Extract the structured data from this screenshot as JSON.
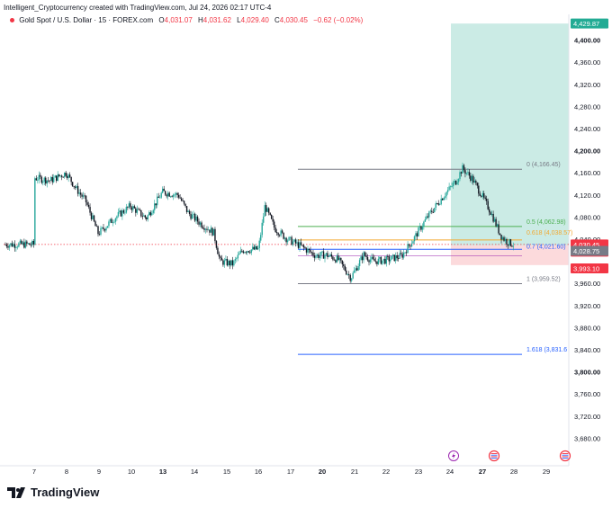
{
  "header": {
    "attribution": "Intelligent_Cryptocurrency created with TradingView.com, Jul 24, 2026 02:17 UTC-4"
  },
  "legend": {
    "symbol": "Gold Spot / U.S. Dollar · 15 · FOREX.com",
    "open_label": "O",
    "open": "4,031.07",
    "high_label": "H",
    "high": "4,031.62",
    "low_label": "L",
    "low": "4,029.40",
    "close_label": "C",
    "close": "4,030.45",
    "change": "−0.62 (−0.02%)"
  },
  "footer": {
    "brand": "TradingView"
  },
  "colors": {
    "up": "#26a69a",
    "down": "#f23645",
    "candle": "#131722",
    "target_zone": "#b9e4dc",
    "stop_zone": "#fbd3d6",
    "fib_0": "#787b86",
    "fib_05": "#4caf50",
    "fib_0618": "#f2a82f",
    "fib_07": "#2962ff",
    "fib_1": "#787b86",
    "fib_1618": "#2962ff",
    "target_tag": "#22ab94",
    "price_tag": "#f23645",
    "entry_tag": "#787b86"
  },
  "icons": [
    "lightning-event-icon",
    "us-flag-event-icon",
    "us-flag-event-icon"
  ],
  "chart_data": {
    "type": "candlestick",
    "title": "Gold Spot / U.S. Dollar · 15 · FOREX.com",
    "currency": "USD",
    "ylim": [
      3660,
      4450
    ],
    "y_ticks": [
      "4,400.00",
      "4,360.00",
      "4,320.00",
      "4,280.00",
      "4,240.00",
      "4,200.00",
      "4,160.00",
      "4,120.00",
      "4,080.00",
      "4,040.00",
      "3,960.00",
      "3,920.00",
      "3,880.00",
      "3,840.00",
      "3,800.00",
      "3,760.00",
      "3,720.00",
      "3,680.00"
    ],
    "y_tick_values": [
      4400,
      4360,
      4320,
      4280,
      4240,
      4200,
      4160,
      4120,
      4080,
      4040,
      3960,
      3920,
      3880,
      3840,
      3800,
      3760,
      3720,
      3680
    ],
    "x_ticks": [
      "7",
      "8",
      "9",
      "10",
      "13",
      "14",
      "15",
      "16",
      "17",
      "20",
      "21",
      "22",
      "23",
      "24",
      "27",
      "28",
      "29"
    ],
    "x_ticks_bold": [
      "13",
      "20",
      "27"
    ],
    "price_path": [
      [
        0,
        4151
      ],
      [
        0.5,
        4146
      ],
      [
        1,
        4160
      ],
      [
        1.3,
        4132
      ],
      [
        1.6,
        4110
      ],
      [
        2,
        4050
      ],
      [
        2.5,
        4078
      ],
      [
        3,
        4100
      ],
      [
        3.5,
        4078
      ],
      [
        4,
        4125
      ],
      [
        4.5,
        4120
      ],
      [
        4.8,
        4088
      ],
      [
        5.2,
        4068
      ],
      [
        5.6,
        4052
      ],
      [
        5.8,
        4000
      ],
      [
        6.2,
        3995
      ],
      [
        6.5,
        4020
      ],
      [
        7,
        4022
      ],
      [
        7.2,
        4100
      ],
      [
        7.5,
        4060
      ],
      [
        7.9,
        4040
      ],
      [
        8.3,
        4028
      ],
      [
        8.8,
        4010
      ],
      [
        9.1,
        4012
      ],
      [
        9.5,
        4003
      ],
      [
        9.9,
        3970
      ],
      [
        10.3,
        4012
      ],
      [
        10.6,
        4000
      ],
      [
        11,
        4002
      ],
      [
        11.5,
        4010
      ],
      [
        11.9,
        4043
      ],
      [
        12.3,
        4080
      ],
      [
        12.8,
        4118
      ],
      [
        13.2,
        4145
      ],
      [
        13.4,
        4168
      ],
      [
        13.7,
        4150
      ],
      [
        14,
        4120
      ],
      [
        14.3,
        4088
      ],
      [
        14.6,
        4047
      ],
      [
        14.8,
        4035
      ],
      [
        15,
        4030.45
      ]
    ],
    "fibonacci": [
      {
        "level": "0",
        "value": 4166.45,
        "label": "0 (4,166.45)"
      },
      {
        "level": "0.5",
        "value": 4062.98,
        "label": "0.5 (4,062.98)"
      },
      {
        "level": "0.618",
        "value": 4038.57,
        "label": "0.618 (4,038.57)"
      },
      {
        "level": "0.7",
        "value": 4021.6,
        "label": "0.7 (4,021.60)"
      },
      {
        "level": "1",
        "value": 3959.52,
        "label": "1 (3,959.52)"
      },
      {
        "level": "1.618",
        "value": 3831.6,
        "label": "1.618 (3,831.6"
      }
    ],
    "position_tool": {
      "target": "4,429.87",
      "target_value": 4429.87,
      "entry": "4,028.75",
      "entry_value": 4028.75,
      "stop": "3,993.10",
      "stop_value": 3993.1
    },
    "last_price": "4,030.45",
    "last_price_value": 4030.45,
    "countdown": "12:01"
  }
}
